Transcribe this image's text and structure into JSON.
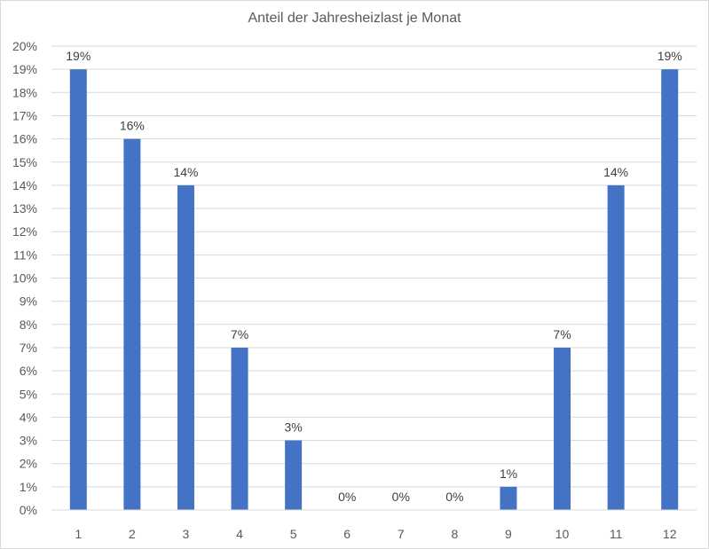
{
  "chart_data": {
    "type": "bar",
    "title": "Anteil der Jahresheizlast je Monat",
    "xlabel": "",
    "ylabel": "",
    "categories": [
      "1",
      "2",
      "3",
      "4",
      "5",
      "6",
      "7",
      "8",
      "9",
      "10",
      "11",
      "12"
    ],
    "values": [
      19,
      16,
      14,
      7,
      3,
      0,
      0,
      0,
      1,
      7,
      14,
      19
    ],
    "data_labels": [
      "19%",
      "16%",
      "14%",
      "7%",
      "3%",
      "0%",
      "0%",
      "0%",
      "1%",
      "7%",
      "14%",
      "19%"
    ],
    "ylim": [
      0,
      20
    ],
    "yticks": [
      "0%",
      "1%",
      "2%",
      "3%",
      "4%",
      "5%",
      "6%",
      "7%",
      "8%",
      "9%",
      "10%",
      "11%",
      "12%",
      "13%",
      "14%",
      "15%",
      "16%",
      "17%",
      "18%",
      "19%",
      "20%"
    ],
    "grid": true,
    "legend": "none",
    "colors": {
      "bar": "#4472C4",
      "grid": "#d9d9d9",
      "text": "#595959"
    }
  }
}
